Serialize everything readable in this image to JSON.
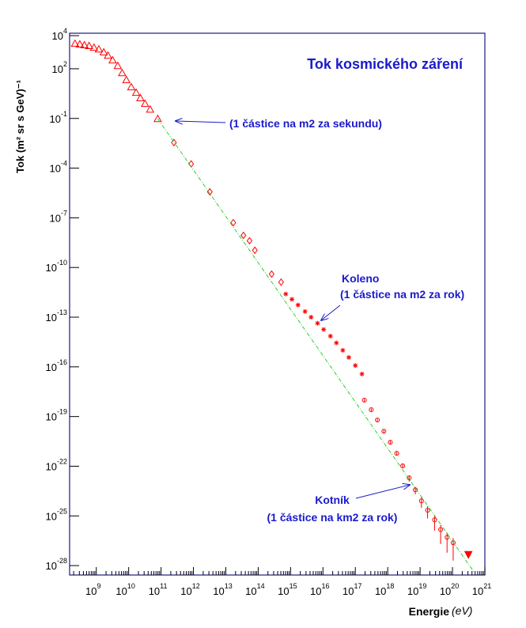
{
  "chart_data": {
    "type": "scatter",
    "title": "Tok kosmického záření",
    "x_label": "Energie",
    "x_unit": "(eV)",
    "y_label": "Tok (m² sr s GeV)⁻¹",
    "xscale": "log",
    "yscale": "log",
    "xlim": [
      150000000.0,
      1e+21
    ],
    "ylim": [
      2.7e-29,
      14000.0
    ],
    "xticks": [
      {
        "value": 1000000000.0,
        "label": "10",
        "sup": "9"
      },
      {
        "value": 10000000000.0,
        "label": "10",
        "sup": "10"
      },
      {
        "value": 100000000000.0,
        "label": "10",
        "sup": "11"
      },
      {
        "value": 1000000000000.0,
        "label": "10",
        "sup": "12"
      },
      {
        "value": 10000000000000.0,
        "label": "10",
        "sup": "13"
      },
      {
        "value": 100000000000000.0,
        "label": "10",
        "sup": "14"
      },
      {
        "value": 1000000000000000.0,
        "label": "10",
        "sup": "15"
      },
      {
        "value": 1e+16,
        "label": "10",
        "sup": "16"
      },
      {
        "value": 1e+17,
        "label": "10",
        "sup": "17"
      },
      {
        "value": 1e+18,
        "label": "10",
        "sup": "18"
      },
      {
        "value": 1e+19,
        "label": "10",
        "sup": "19"
      },
      {
        "value": 1e+20,
        "label": "10",
        "sup": "20"
      },
      {
        "value": 1e+21,
        "label": "10",
        "sup": "21"
      }
    ],
    "yticks": [
      {
        "value": 10000.0,
        "label": "10",
        "sup": "4"
      },
      {
        "value": 100.0,
        "label": "10",
        "sup": "2"
      },
      {
        "value": 0.1,
        "label": "10",
        "sup": "-1"
      },
      {
        "value": 0.0001,
        "label": "10",
        "sup": "-4"
      },
      {
        "value": 1e-07,
        "label": "10",
        "sup": "-7"
      },
      {
        "value": 1e-10,
        "label": "10",
        "sup": "-10"
      },
      {
        "value": 1e-13,
        "label": "10",
        "sup": "-13"
      },
      {
        "value": 1e-16,
        "label": "10",
        "sup": "-16"
      },
      {
        "value": 1e-19,
        "label": "10",
        "sup": "-19"
      },
      {
        "value": 1e-22,
        "label": "10",
        "sup": "-22"
      },
      {
        "value": 1e-25,
        "label": "10",
        "sup": "-25"
      },
      {
        "value": 1e-28,
        "label": "10",
        "sup": "-28"
      }
    ],
    "series": [
      {
        "marker": "triangle",
        "color": "#ff0000",
        "x": [
          220000000.0,
          310000000.0,
          430000000.0,
          600000000.0,
          850000000.0,
          1200000000.0,
          1700000000.0,
          2300000000.0,
          3200000000.0,
          4600000000.0,
          6300000000.0,
          8500000000.0,
          12000000000.0,
          17000000000.0,
          23000000000.0,
          32000000000.0,
          46000000000.0,
          79000000000.0
        ],
        "values": [
          3300.0,
          3000.0,
          2700.0,
          2400.0,
          1900.0,
          1500.0,
          1000.0,
          630,
          330,
          150,
          56,
          21,
          7.8,
          3.6,
          1.7,
          0.78,
          0.35,
          0.095
        ]
      },
      {
        "marker": "diamond",
        "color": "#ff0000",
        "x": [
          250000000000.0,
          850000000000.0,
          3200000000000.0,
          17000000000000.0,
          35000000000000.0,
          54000000000000.0,
          79000000000000.0,
          260000000000000.0,
          510000000000000.0
        ],
        "values": [
          0.0035,
          0.00018,
          3.7e-06,
          5.1e-08,
          8.7e-09,
          4.1e-09,
          1.1e-09,
          4e-11,
          1.3e-11
        ]
      },
      {
        "marker": "star",
        "color": "#ff0000",
        "x": [
          710000000000000.0,
          1100000000000000.0,
          1700000000000000.0,
          2800000000000000.0,
          4300000000000000.0,
          6800000000000000.0,
          1.05e+16,
          1.7e+16,
          2.6e+16,
          4.1e+16,
          6.3e+16,
          1e+17,
          1.6e+17
        ],
        "values": [
          2.5e-12,
          1.2e-12,
          5.4e-13,
          2.2e-13,
          1e-13,
          4.3e-14,
          1.8e-14,
          7.2e-15,
          2.8e-15,
          1e-15,
          3.7e-16,
          1.2e-16,
          3.7e-17
        ]
      },
      {
        "marker": "circle",
        "color": "#ff0000",
        "x": [
          1.9e+17,
          3.1e+17,
          4.8e+17,
          7.6e+17,
          1.2e+18,
          1.9e+18,
          2.9e+18,
          4.6e+18,
          7.1e+18,
          1.1e+19,
          1.7e+19,
          2.8e+19,
          4.3e+19,
          6.8e+19,
          1.05e+20
        ],
        "values": [
          9.8e-19,
          2.6e-19,
          6.2e-20,
          1.3e-20,
          2.8e-21,
          6e-22,
          1.05e-22,
          2e-23,
          3.8e-24,
          8.1e-25,
          2.2e-25,
          5.8e-26,
          1.5e-26,
          5.1e-27,
          2.4e-27
        ],
        "errors": [
          2e-19,
          5e-20,
          1.2e-20,
          3e-21,
          7e-22,
          1.5e-22,
          3e-23,
          8e-24,
          1.8e-24,
          5e-25,
          1.5e-25,
          4.5e-26,
          1.3e-26,
          4.5e-27,
          2.2e-27
        ]
      },
      {
        "marker": "triangle-down-filled",
        "color": "#ff0000",
        "x": [
          3.1e+20
        ],
        "values": [
          4.6e-28
        ]
      },
      {
        "marker": "line",
        "color": "#33cc33",
        "x": [
          79000000000.0,
          4.6e+20
        ],
        "values": [
          0.095,
          4.1e-29
        ]
      }
    ],
    "annotations": [
      "(1 částice na m2  za sekundu)",
      "Koleno",
      "(1 částice na m2 za rok)",
      "Kotník",
      "(1 částice na km2 za rok)"
    ]
  }
}
